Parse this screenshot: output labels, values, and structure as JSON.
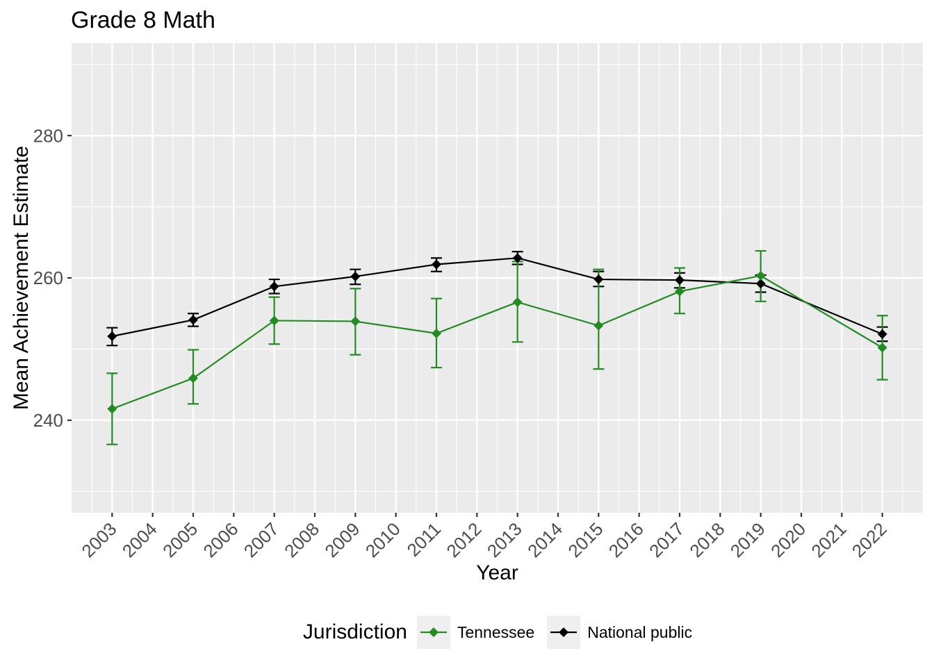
{
  "chart_data": {
    "type": "line",
    "title": "Grade 8 Math",
    "xlabel": "Year",
    "ylabel": "Mean Achievement Estimate",
    "x_domain": [
      2002,
      2023
    ],
    "y_domain": [
      227,
      293
    ],
    "x_ticks": [
      {
        "year": 2003,
        "label": "2003"
      },
      {
        "year": 2004,
        "label": "2004"
      },
      {
        "year": 2005,
        "label": "2005"
      },
      {
        "year": 2006,
        "label": "2006"
      },
      {
        "year": 2007,
        "label": "2007"
      },
      {
        "year": 2008,
        "label": "2008"
      },
      {
        "year": 2009,
        "label": "2009"
      },
      {
        "year": 2010,
        "label": "2010"
      },
      {
        "year": 2011,
        "label": "2011"
      },
      {
        "year": 2012,
        "label": "2012"
      },
      {
        "year": 2013,
        "label": "2013"
      },
      {
        "year": 2014,
        "label": "2014"
      },
      {
        "year": 2015,
        "label": "2015"
      },
      {
        "year": 2016,
        "label": "2016"
      },
      {
        "year": 2017,
        "label": "2017"
      },
      {
        "year": 2018,
        "label": "2018"
      },
      {
        "year": 2019,
        "label": "2019"
      },
      {
        "year": 2020,
        "label": "2020"
      },
      {
        "year": 2021,
        "label": "2021"
      },
      {
        "year": 2022,
        "label": "2022"
      }
    ],
    "y_ticks": [
      {
        "value": 240,
        "label": "240"
      },
      {
        "value": 260,
        "label": "260"
      },
      {
        "value": 280,
        "label": "280"
      }
    ],
    "y_minor_ticks": [
      230,
      250,
      270,
      290
    ],
    "grid": true,
    "legend": {
      "title": "Jurisdiction",
      "position": "bottom",
      "entries": [
        {
          "label": "Tennessee",
          "color": "#228B22"
        },
        {
          "label": "National public",
          "color": "#000000"
        }
      ]
    },
    "series": [
      {
        "name": "National public",
        "color": "#000000",
        "points": [
          {
            "year": 2003,
            "value": 251.8,
            "lo": 250.5,
            "hi": 253.0
          },
          {
            "year": 2005,
            "value": 254.1,
            "lo": 253.2,
            "hi": 255.0
          },
          {
            "year": 2007,
            "value": 258.8,
            "lo": 257.8,
            "hi": 259.8
          },
          {
            "year": 2009,
            "value": 260.2,
            "lo": 259.1,
            "hi": 261.2
          },
          {
            "year": 2011,
            "value": 261.9,
            "lo": 260.9,
            "hi": 262.8
          },
          {
            "year": 2013,
            "value": 262.8,
            "lo": 261.9,
            "hi": 263.7
          },
          {
            "year": 2015,
            "value": 259.8,
            "lo": 258.8,
            "hi": 260.9
          },
          {
            "year": 2017,
            "value": 259.7,
            "lo": 258.6,
            "hi": 260.7
          },
          {
            "year": 2019,
            "value": 259.2,
            "lo": 258.0,
            "hi": 260.4
          },
          {
            "year": 2022,
            "value": 252.1,
            "lo": 251.1,
            "hi": 253.1
          }
        ]
      },
      {
        "name": "Tennessee",
        "color": "#228B22",
        "points": [
          {
            "year": 2003,
            "value": 241.6,
            "lo": 236.6,
            "hi": 246.6
          },
          {
            "year": 2005,
            "value": 245.9,
            "lo": 242.3,
            "hi": 249.9
          },
          {
            "year": 2007,
            "value": 254.0,
            "lo": 250.7,
            "hi": 257.3
          },
          {
            "year": 2009,
            "value": 253.9,
            "lo": 249.2,
            "hi": 258.5
          },
          {
            "year": 2011,
            "value": 252.2,
            "lo": 247.4,
            "hi": 257.1
          },
          {
            "year": 2013,
            "value": 256.6,
            "lo": 251.0,
            "hi": 262.3
          },
          {
            "year": 2015,
            "value": 253.3,
            "lo": 247.2,
            "hi": 261.2
          },
          {
            "year": 2017,
            "value": 258.1,
            "lo": 255.0,
            "hi": 261.4
          },
          {
            "year": 2019,
            "value": 260.3,
            "lo": 256.7,
            "hi": 263.8
          },
          {
            "year": 2022,
            "value": 250.2,
            "lo": 245.7,
            "hi": 254.7
          }
        ]
      }
    ],
    "style": {
      "panel_bg": "#EBEBEB",
      "grid_color": "#FFFFFF",
      "tick_color": "#333333",
      "tick_label_color": "#4D4D4D"
    }
  }
}
